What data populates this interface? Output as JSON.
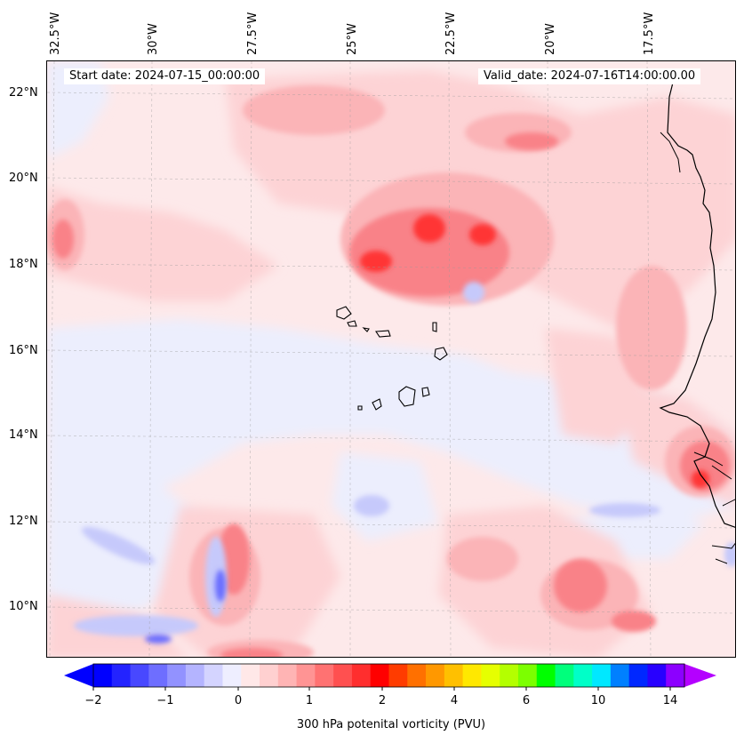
{
  "map": {
    "lon_labels": [
      "32.5°W",
      "30°W",
      "27.5°W",
      "25°W",
      "22.5°W",
      "20°W",
      "17.5°W"
    ],
    "lat_labels": [
      "22°N",
      "20°N",
      "18°N",
      "16°N",
      "14°N",
      "12°N",
      "10°N"
    ],
    "start_date": "Start date: 2024-07-15_00:00:00",
    "valid_date": "Valid_date: 2024-07-16T14:00:00.00",
    "field_colors": {
      "background": "#fde9ea",
      "light_pink": "#fdd3d5",
      "pink": "#fbb4b7",
      "medium_red": "#f98288",
      "strong_red": "#ff3535",
      "light_blue": "#eceefd",
      "blue": "#c6c9fb",
      "deep_blue": "#6a6eff"
    }
  },
  "colorbar": {
    "ticks": [
      "−2",
      "−1",
      "0",
      "1",
      "2",
      "4",
      "6",
      "10",
      "14"
    ],
    "label": "300 hPa potenital vorticity (PVU)",
    "colors": [
      "#0000ff",
      "#2323ff",
      "#4848ff",
      "#6e6eff",
      "#9292ff",
      "#b4b4ff",
      "#d4d4ff",
      "#eeeeff",
      "#ffe8e8",
      "#ffd0d0",
      "#ffb4b4",
      "#ff9494",
      "#ff7272",
      "#ff5050",
      "#ff2e2e",
      "#ff0000",
      "#ff3c00",
      "#ff7000",
      "#ff9800",
      "#ffc000",
      "#ffe800",
      "#e6ff00",
      "#b4ff00",
      "#7cff00",
      "#00ff00",
      "#00ff7c",
      "#00ffc8",
      "#00e8ff",
      "#0080ff",
      "#0028ff",
      "#2800ff",
      "#8c00ff"
    ],
    "left_arrow_color": "#0000ff",
    "right_arrow_color": "#b400ff"
  }
}
